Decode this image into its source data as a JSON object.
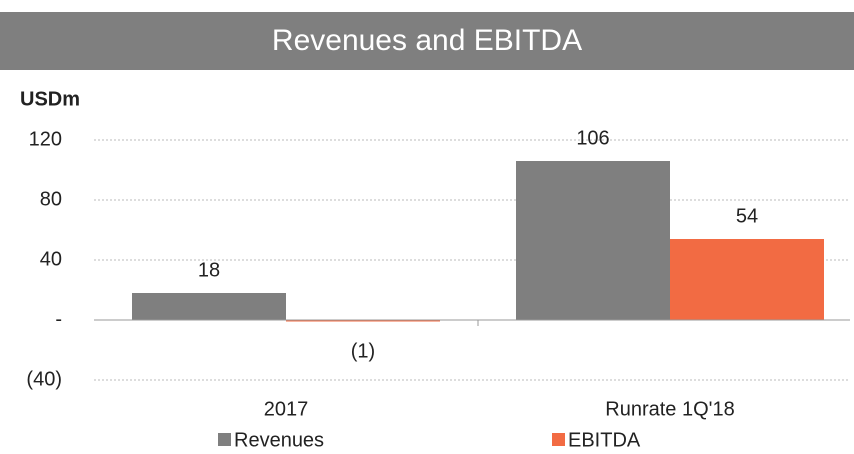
{
  "chart_data": {
    "type": "bar",
    "title": "Revenues and EBITDA",
    "y_label": "USDm",
    "categories": [
      "2017",
      "Runrate 1Q'18"
    ],
    "series": [
      {
        "name": "Revenues",
        "color": "#7f7f7f",
        "values": [
          18,
          106
        ]
      },
      {
        "name": "EBITDA",
        "color": "#f26b43",
        "values": [
          -1,
          54
        ],
        "value_labels": [
          "(1)",
          "54"
        ]
      }
    ],
    "ylim": [
      -40,
      120
    ],
    "yticks": [
      {
        "value": -40,
        "label": "(40)"
      },
      {
        "value": 0,
        "label": "-"
      },
      40,
      80,
      120
    ],
    "grid": true,
    "legend": "bottom"
  }
}
